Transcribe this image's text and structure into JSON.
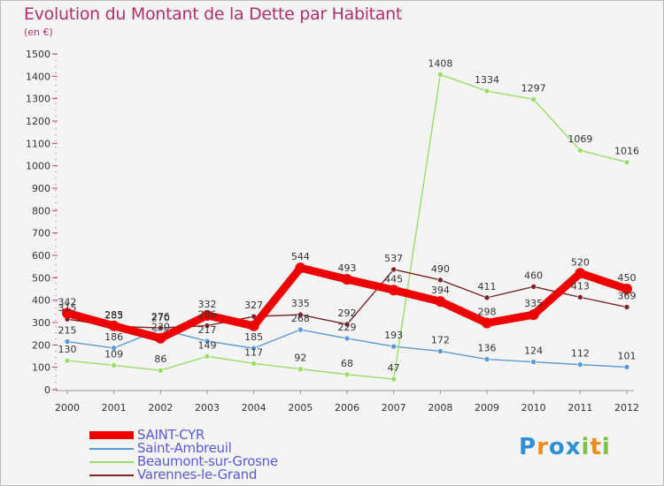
{
  "title": "Evolution du Montant de la Dette par Habitant",
  "subtitle": "(en €)",
  "brand": "Proxiti",
  "chart_data": {
    "type": "line",
    "x": [
      "2000",
      "2001",
      "2002",
      "2003",
      "2004",
      "2005",
      "2006",
      "2007",
      "2008",
      "2009",
      "2010",
      "2011",
      "2012"
    ],
    "ylim": [
      0,
      1500
    ],
    "yticks": [
      0,
      100,
      200,
      300,
      400,
      500,
      600,
      700,
      800,
      900,
      1000,
      1100,
      1200,
      1300,
      1400,
      1500
    ],
    "grid": false,
    "legend_position": "bottom-left",
    "series": [
      {
        "name": "SAINT-CYR",
        "color": "#ee0000",
        "values": [
          342,
          285,
          230,
          332,
          285,
          544,
          493,
          445,
          394,
          298,
          335,
          520,
          450
        ],
        "labels": [
          "342",
          "285",
          "230",
          "332",
          "",
          "544",
          "493",
          "445",
          "394",
          "298",
          "335",
          "520",
          "450"
        ]
      },
      {
        "name": "Saint-Ambreuil",
        "color": "#5a9bd5",
        "values": [
          215,
          186,
          270,
          217,
          185,
          268,
          229,
          193,
          172,
          136,
          124,
          112,
          101
        ],
        "labels": [
          "215",
          "186",
          "270",
          "217",
          "185",
          "268",
          "229",
          "193",
          "172",
          "136",
          "124",
          "112",
          "101"
        ]
      },
      {
        "name": "Beaumont-sur-Grosne",
        "color": "#99dd66",
        "values": [
          130,
          109,
          86,
          149,
          117,
          92,
          68,
          47,
          1408,
          1334,
          1297,
          1069,
          1016
        ],
        "labels": [
          "130",
          "109",
          "86",
          "149",
          "117",
          "92",
          "68",
          "47",
          "1408",
          "1334",
          "1297",
          "1069",
          "1016"
        ]
      },
      {
        "name": "Varennes-le-Grand",
        "color": "#7a2424",
        "values": [
          315,
          283,
          276,
          286,
          327,
          335,
          292,
          537,
          490,
          411,
          460,
          413,
          369
        ],
        "labels": [
          "315",
          "283",
          "276",
          "286",
          "327",
          "335",
          "292",
          "537",
          "490",
          "411",
          "460",
          "413",
          "369"
        ]
      }
    ]
  }
}
